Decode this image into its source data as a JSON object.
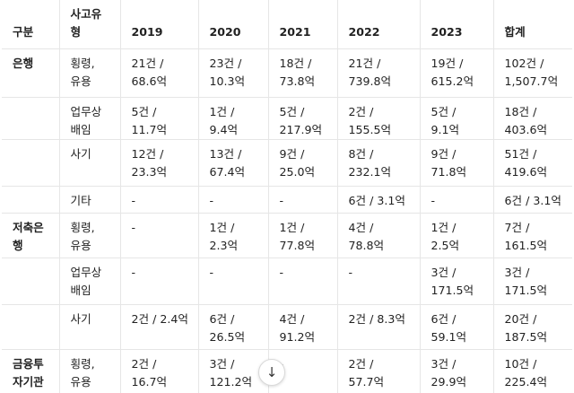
{
  "table": {
    "headers": [
      "구분",
      "사고유형",
      "2019",
      "2020",
      "2021",
      "2022",
      "2023",
      "합계"
    ],
    "rows": [
      {
        "category": "은행",
        "type": "횡령, 유용",
        "cells": [
          "21건 / 68.6억",
          "23건 / 10.3억",
          "18건 / 73.8억",
          "21건 / 739.8억",
          "19건 / 615.2억",
          "102건 / 1,507.7억"
        ]
      },
      {
        "category": "",
        "type": "업무상 배임",
        "cells": [
          "5건 / 11.7억",
          "1건 / 9.4억",
          "5건 / 217.9억",
          "2건 / 155.5억",
          "5건 / 9.1억",
          "18건 / 403.6억"
        ]
      },
      {
        "category": "",
        "type": "사기",
        "cells": [
          "12건 / 23.3억",
          "13건 / 67.4억",
          "9건 / 25.0억",
          "8건 / 232.1억",
          "9건 / 71.8억",
          "51건 / 419.6억"
        ]
      },
      {
        "category": "",
        "type": "기타",
        "cells": [
          "-",
          "-",
          "-",
          "6건 / 3.1억",
          "-",
          "6건 / 3.1억"
        ]
      },
      {
        "category": "저축은행",
        "type": "횡령, 유용",
        "cells": [
          "-",
          "1건 / 2.3억",
          "1건 / 77.8억",
          "4건 / 78.8억",
          "1건 / 2.5억",
          "7건 / 161.5억"
        ]
      },
      {
        "category": "",
        "type": "업무상 배임",
        "cells": [
          "-",
          "-",
          "-",
          "-",
          "3건 / 171.5억",
          "3건 / 171.5억"
        ]
      },
      {
        "category": "",
        "type": "사기",
        "cells": [
          "2건 / 2.4억",
          "6건 / 26.5억",
          "4건 / 91.2억",
          "2건 / 8.3억",
          "6건 / 59.1억",
          "20건 / 187.5억"
        ]
      },
      {
        "category": "금융투자기관",
        "type": "횡령, 유용",
        "cells": [
          "2건 / 16.7억",
          "3건 / 121.2억",
          "-",
          "2건 / 57.7억",
          "3건 / 29.9억",
          "10건 / 225.4억"
        ]
      }
    ]
  },
  "scroll_button": {
    "icon": "arrow-down-icon",
    "glyph": "↓"
  }
}
